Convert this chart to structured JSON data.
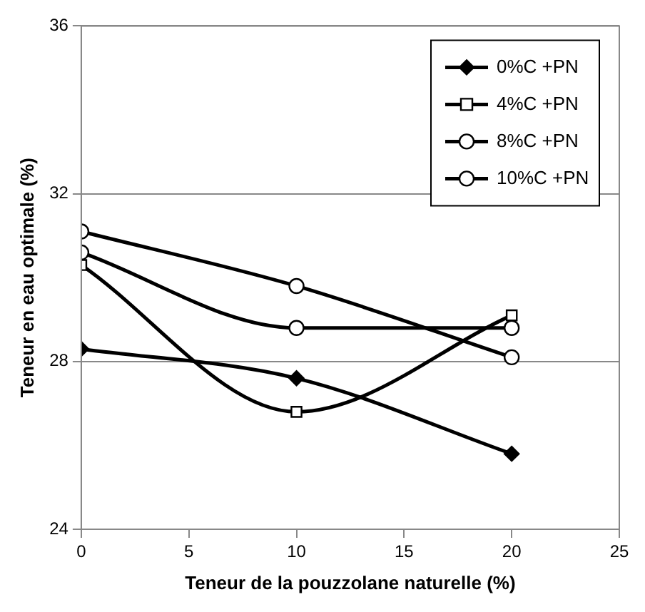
{
  "chart_data": {
    "type": "line",
    "xlabel": "Teneur de la pouzzolane naturelle (%)",
    "ylabel": "Teneur en eau optimale (%)",
    "x": [
      0,
      10,
      20
    ],
    "xlim": [
      0,
      25
    ],
    "xticks": [
      0,
      5,
      10,
      15,
      20,
      25
    ],
    "ylim": [
      24,
      36
    ],
    "yticks": [
      24,
      28,
      32,
      36
    ],
    "grid": "y",
    "legend": "top right",
    "line_style": "solid",
    "series": [
      {
        "name": "0%C +PN",
        "color": "#000000",
        "marker": "diamond",
        "values": [
          28.3,
          27.6,
          25.8
        ]
      },
      {
        "name": "4%C +PN",
        "color": "#000000",
        "marker": "square",
        "values": [
          30.3,
          26.8,
          29.1
        ]
      },
      {
        "name": "8%C +PN",
        "color": "#000000",
        "marker": "circle",
        "values": [
          31.1,
          29.8,
          28.1
        ]
      },
      {
        "name": "10%C +PN",
        "color": "#000000",
        "marker": "circle",
        "values": [
          30.6,
          28.8,
          28.8
        ]
      }
    ]
  }
}
